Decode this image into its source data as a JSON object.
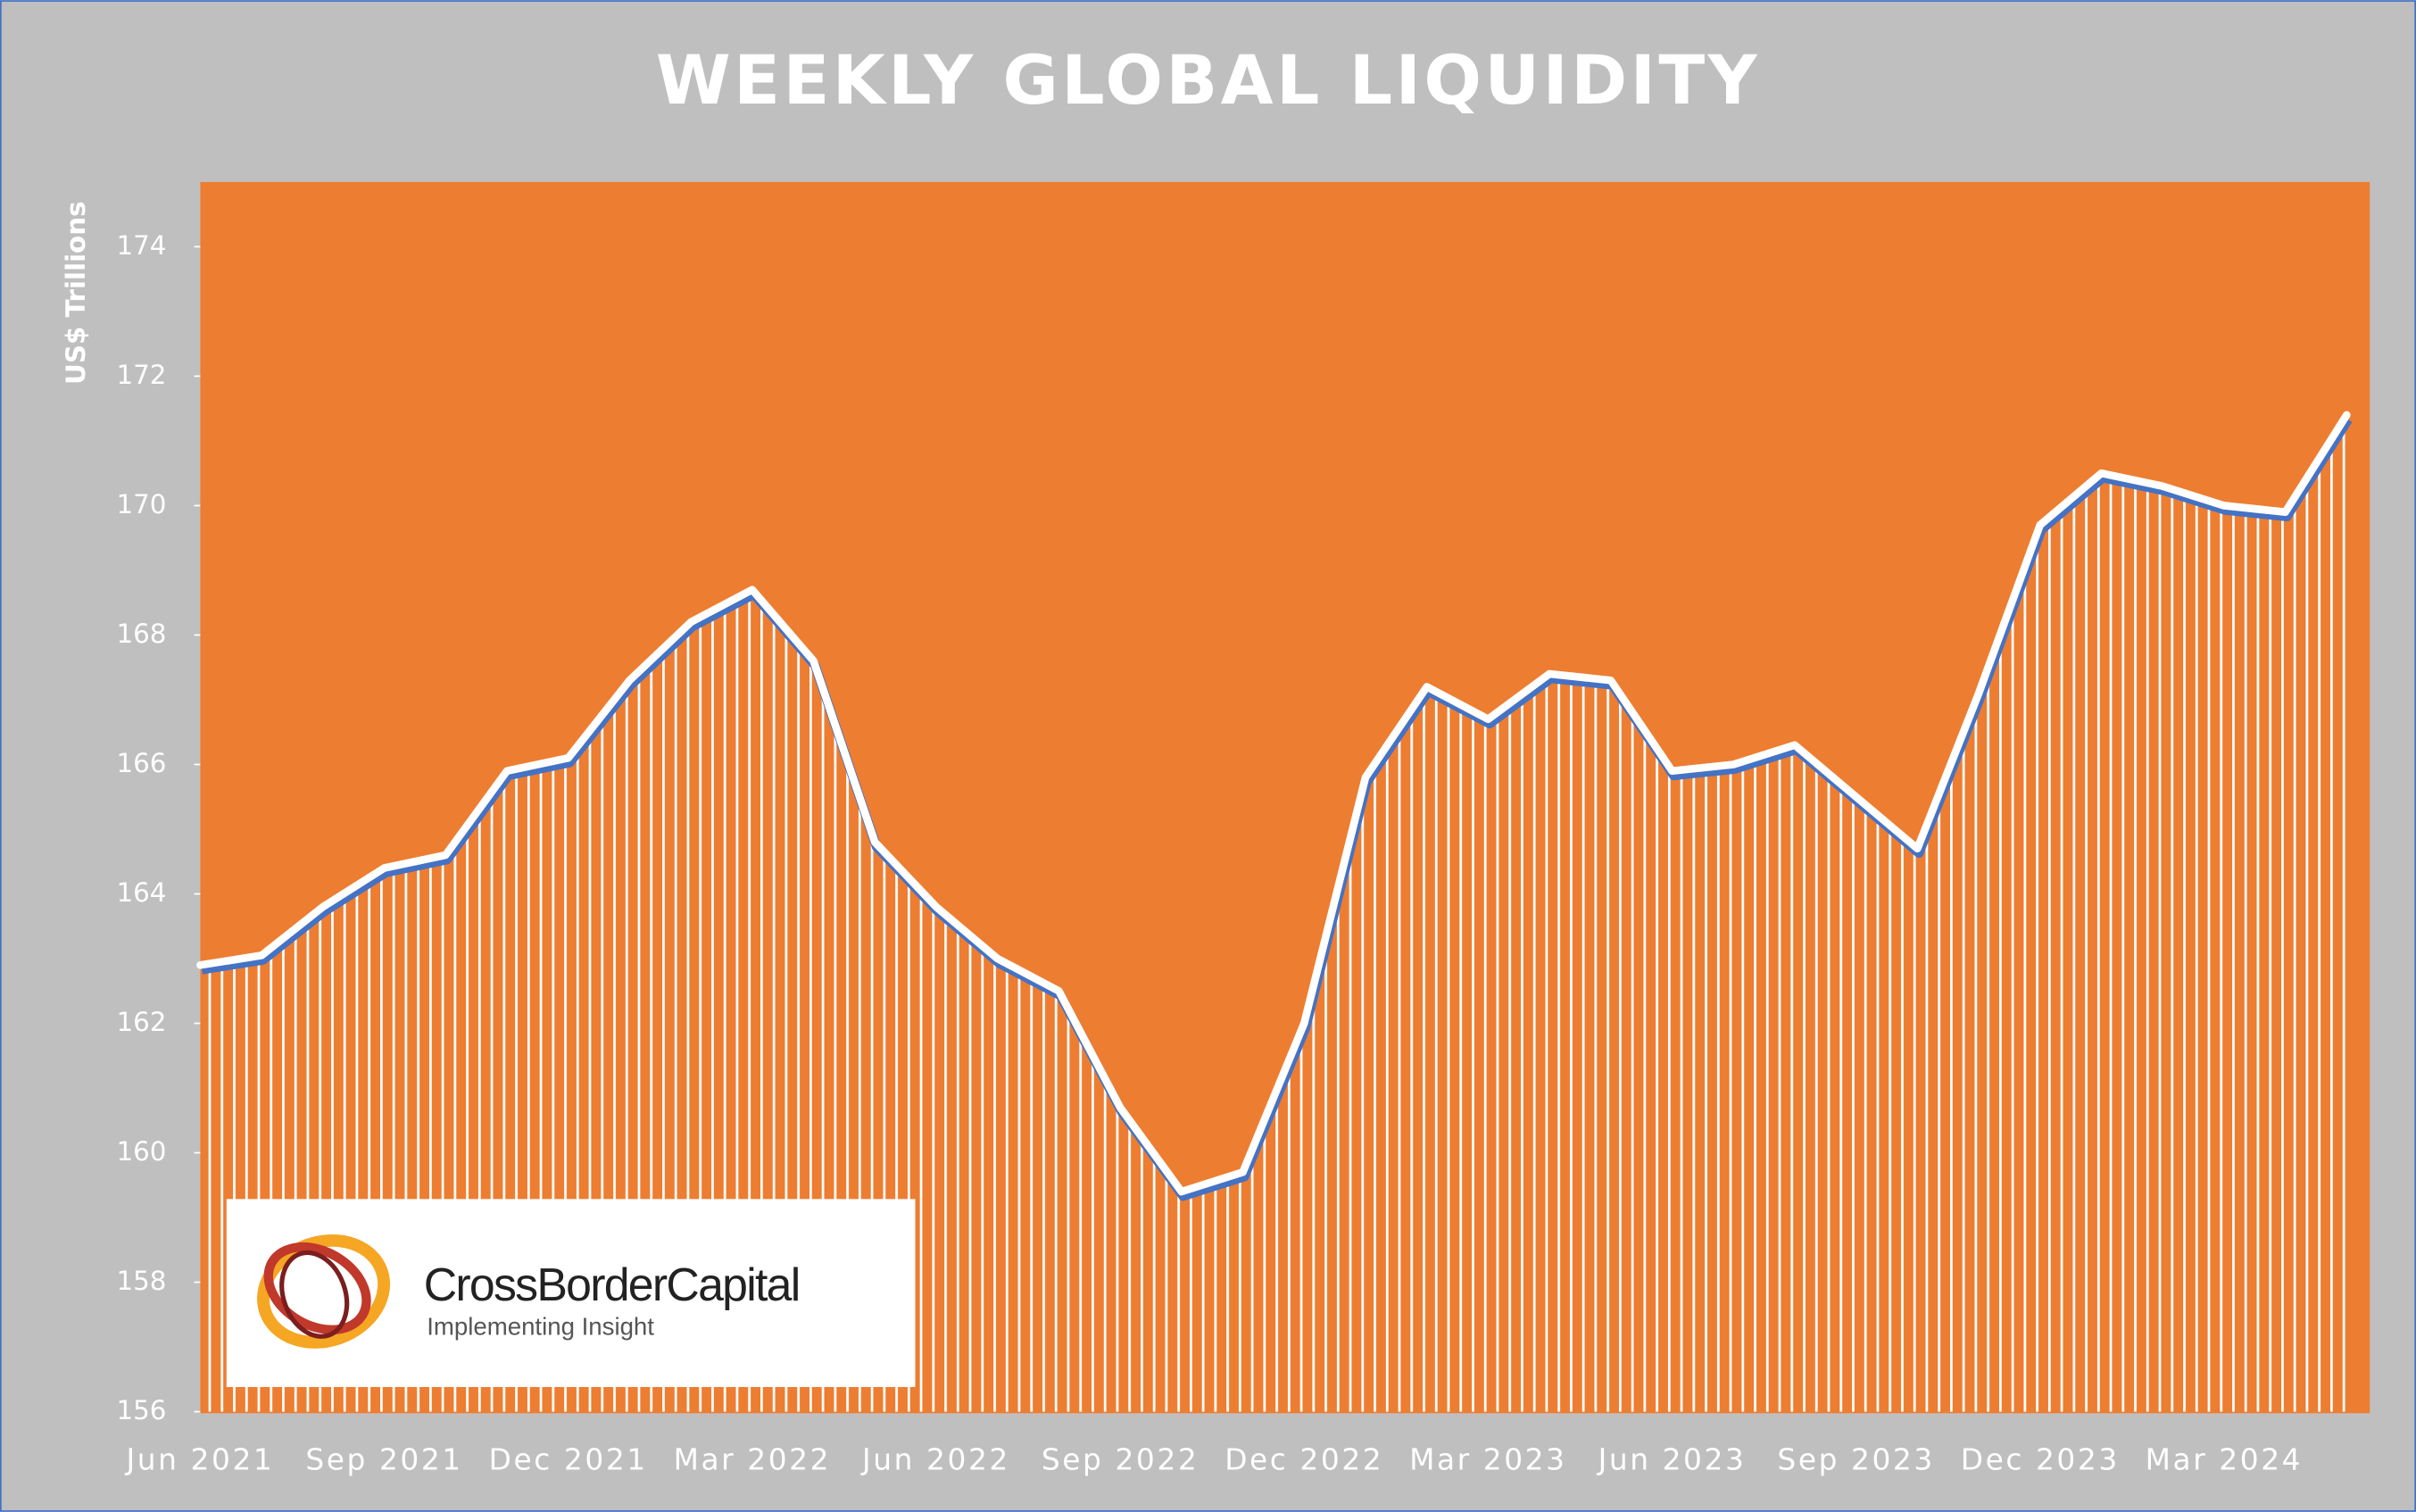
{
  "chart_data": {
    "type": "area",
    "title": "WEEKLY GLOBAL LIQUIDITY",
    "y_label": "US$ Trillions",
    "categories": [
      "Jun 2021",
      null,
      null,
      "Sep 2021",
      null,
      null,
      "Dec 2021",
      null,
      null,
      "Mar 2022",
      null,
      null,
      "Jun 2022",
      null,
      null,
      "Sep 2022",
      null,
      null,
      "Dec 2022",
      null,
      null,
      "Mar 2023",
      null,
      null,
      "Jun 2023",
      null,
      null,
      "Sep 2023",
      null,
      null,
      "Dec 2023",
      null,
      null,
      "Mar 2024",
      null,
      null
    ],
    "series": [
      {
        "name": "Global Liquidity",
        "color": "#ffffff",
        "values": [
          162.9,
          163.05,
          163.8,
          164.4,
          164.6,
          165.9,
          166.1,
          167.3,
          168.2,
          168.7,
          167.6,
          164.8,
          163.8,
          163.0,
          162.5,
          160.7,
          159.4,
          159.7,
          162.0,
          165.8,
          167.2,
          166.7,
          167.4,
          167.3,
          165.9,
          166.0,
          166.3,
          165.5,
          164.7,
          167.1,
          169.7,
          170.5,
          170.3,
          170.0,
          169.9,
          171.4
        ]
      }
    ],
    "ylim": [
      156,
      175
    ],
    "yticks": [
      156,
      158,
      160,
      162,
      164,
      166,
      168,
      170,
      172,
      174
    ],
    "plot_color": "#ed7d31",
    "background": "#bfbfbf",
    "logo": {
      "name": "CrossBorderCapital",
      "tagline": "Implementing Insight"
    }
  }
}
